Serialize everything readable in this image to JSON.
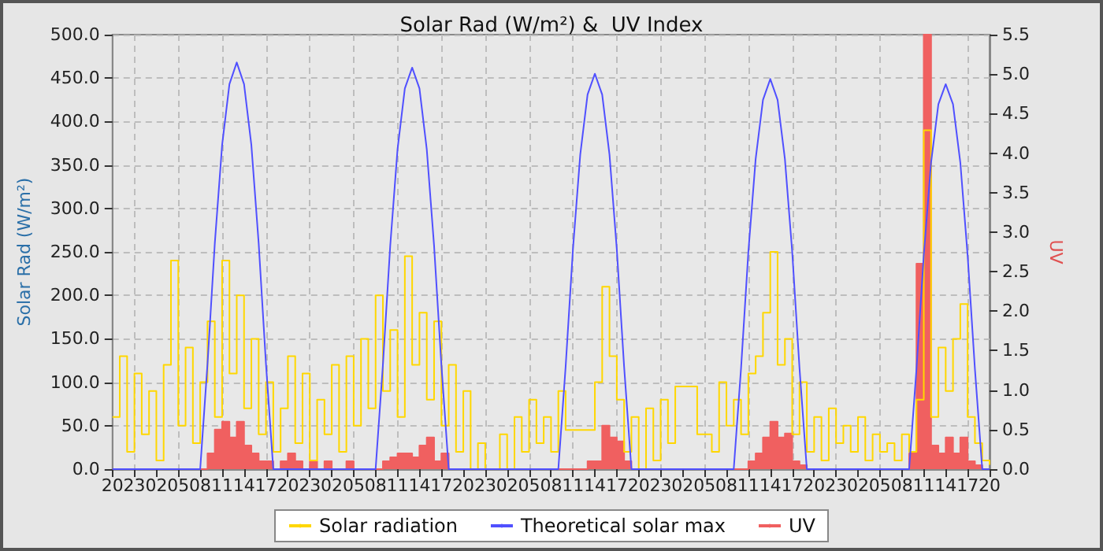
{
  "chart_data": {
    "type": "step",
    "title": "Solar Rad (W/m²) &  UV Index",
    "ylabel": "Solar Rad (W/m²)",
    "y2label": "UV",
    "categories": [
      "20",
      null,
      null,
      "23",
      null,
      null,
      "02",
      null,
      null,
      "05",
      null,
      null,
      "08",
      null,
      null,
      "11",
      null,
      null,
      "14",
      null,
      null,
      "17",
      null,
      null,
      "20",
      null,
      null,
      "23",
      null,
      null,
      "02",
      null,
      null,
      "05",
      null,
      null,
      "08",
      null,
      null,
      "11",
      null,
      null,
      "14",
      null,
      null,
      "17",
      null,
      null,
      "20",
      null,
      null,
      "23",
      null,
      null,
      "02",
      null,
      null,
      "05",
      null,
      null,
      "08",
      null,
      null,
      "11",
      null,
      null,
      "14",
      null,
      null,
      "17",
      null,
      null,
      "20",
      null,
      null,
      "23",
      null,
      null,
      "02",
      null,
      null,
      "05",
      null,
      null,
      "08",
      null,
      null,
      "11",
      null,
      null,
      "14",
      null,
      null,
      "17",
      null,
      null,
      "20",
      null,
      null,
      "23",
      null,
      null,
      "02",
      null,
      null,
      "05",
      null,
      null,
      "08",
      null,
      null,
      "11",
      null,
      null,
      "14",
      null,
      null,
      "17",
      null,
      null,
      "20"
    ],
    "ylim": [
      0,
      500
    ],
    "yticks": [
      {
        "value": 0,
        "label": "0.0"
      },
      {
        "value": 50,
        "label": "50.0"
      },
      {
        "value": 100,
        "label": "100.0"
      },
      {
        "value": 150,
        "label": "150.0"
      },
      {
        "value": 200,
        "label": "200.0"
      },
      {
        "value": 250,
        "label": "250.0"
      },
      {
        "value": 300,
        "label": "300.0"
      },
      {
        "value": 350,
        "label": "350.0"
      },
      {
        "value": 400,
        "label": "400.0"
      },
      {
        "value": 450,
        "label": "450.0"
      },
      {
        "value": 500,
        "label": "500.0"
      }
    ],
    "y2lim": [
      0,
      5.5
    ],
    "y2ticks": [
      {
        "value": 0,
        "label": "0.0"
      },
      {
        "value": 0.5,
        "label": "0.5"
      },
      {
        "value": 1,
        "label": "1.0"
      },
      {
        "value": 1.5,
        "label": "1.5"
      },
      {
        "value": 2,
        "label": "2.0"
      },
      {
        "value": 2.5,
        "label": "2.5"
      },
      {
        "value": 3,
        "label": "3.0"
      },
      {
        "value": 3.5,
        "label": "3.5"
      },
      {
        "value": 4,
        "label": "4.0"
      },
      {
        "value": 4.5,
        "label": "4.5"
      },
      {
        "value": 5,
        "label": "5.0"
      },
      {
        "value": 5.5,
        "label": "5.5"
      }
    ],
    "grid": true,
    "legend": "bottom",
    "marker": "none",
    "series": [
      {
        "name": "Solar radiation",
        "color": "#ffd700",
        "values": [
          60,
          130,
          20,
          110,
          40,
          90,
          10,
          120,
          240,
          50,
          140,
          30,
          100,
          170,
          60,
          240,
          110,
          200,
          70,
          150,
          40,
          100,
          20,
          70,
          130,
          30,
          110,
          10,
          80,
          40,
          120,
          20,
          130,
          50,
          150,
          70,
          200,
          90,
          160,
          60,
          245,
          120,
          180,
          80,
          170,
          50,
          120,
          20,
          90,
          0,
          30,
          0,
          0,
          40,
          0,
          60,
          20,
          80,
          30,
          60,
          20,
          90,
          45,
          45,
          45,
          45,
          100,
          210,
          130,
          80,
          20,
          60,
          0,
          70,
          10,
          80,
          30,
          95,
          95,
          95,
          40,
          40,
          20,
          100,
          50,
          80,
          40,
          110,
          130,
          180,
          250,
          120,
          150,
          40,
          100,
          20,
          60,
          10,
          70,
          30,
          50,
          20,
          60,
          10,
          40,
          20,
          30,
          10,
          40,
          20,
          80,
          390,
          60,
          140,
          90,
          150,
          190,
          60,
          30,
          10,
          5
        ]
      },
      {
        "name": "Theoretical solar max",
        "type": "line",
        "color": "#5050ff",
        "values": [
          0,
          0,
          0,
          0,
          0,
          0,
          0,
          0,
          0,
          0,
          0,
          0,
          0,
          121,
          260,
          373,
          443,
          468,
          443,
          373,
          260,
          121,
          0,
          0,
          0,
          0,
          0,
          0,
          0,
          0,
          0,
          0,
          0,
          0,
          0,
          0,
          0,
          120,
          257,
          368,
          438,
          462,
          438,
          368,
          257,
          120,
          0,
          0,
          0,
          0,
          0,
          0,
          0,
          0,
          0,
          0,
          0,
          0,
          0,
          0,
          0,
          0,
          118,
          253,
          362,
          431,
          455,
          431,
          362,
          253,
          118,
          0,
          0,
          0,
          0,
          0,
          0,
          0,
          0,
          0,
          0,
          0,
          0,
          0,
          0,
          0,
          116,
          250,
          357,
          425,
          449,
          425,
          357,
          250,
          116,
          0,
          0,
          0,
          0,
          0,
          0,
          0,
          0,
          0,
          0,
          0,
          0,
          0,
          0,
          0,
          115,
          246,
          353,
          420,
          443,
          420,
          353,
          246,
          115,
          0,
          0
        ]
      },
      {
        "name": "UV",
        "type": "area",
        "axis": "y2",
        "color": "#f06060",
        "values": [
          0,
          0,
          0,
          0,
          0,
          0,
          0,
          0,
          0,
          0,
          0,
          0,
          0,
          0.2,
          0.5,
          0.6,
          0.4,
          0.6,
          0.3,
          0.2,
          0.1,
          0.1,
          0,
          0.1,
          0.2,
          0.1,
          0,
          0.1,
          0,
          0.1,
          0,
          0,
          0.1,
          0,
          0,
          0,
          0,
          0.1,
          0.15,
          0.2,
          0.2,
          0.15,
          0.3,
          0.4,
          0.1,
          0.2,
          0,
          0,
          0,
          0,
          0,
          0,
          0,
          0,
          0,
          0,
          0,
          0,
          0,
          0,
          0,
          0,
          0,
          0,
          0,
          0.1,
          0.1,
          0.55,
          0.4,
          0.35,
          0.1,
          0,
          0,
          0,
          0,
          0,
          0,
          0,
          0,
          0,
          0,
          0,
          0,
          0,
          0,
          0,
          0,
          0.1,
          0.2,
          0.4,
          0.6,
          0.4,
          0.45,
          0.1,
          0.05,
          0,
          0,
          0,
          0,
          0,
          0,
          0,
          0,
          0,
          0,
          0,
          0,
          0,
          0,
          0.2,
          2.6,
          5.5,
          0.3,
          0.2,
          0.4,
          0.2,
          0.4,
          0.1,
          0.05,
          0,
          0
        ]
      }
    ]
  }
}
